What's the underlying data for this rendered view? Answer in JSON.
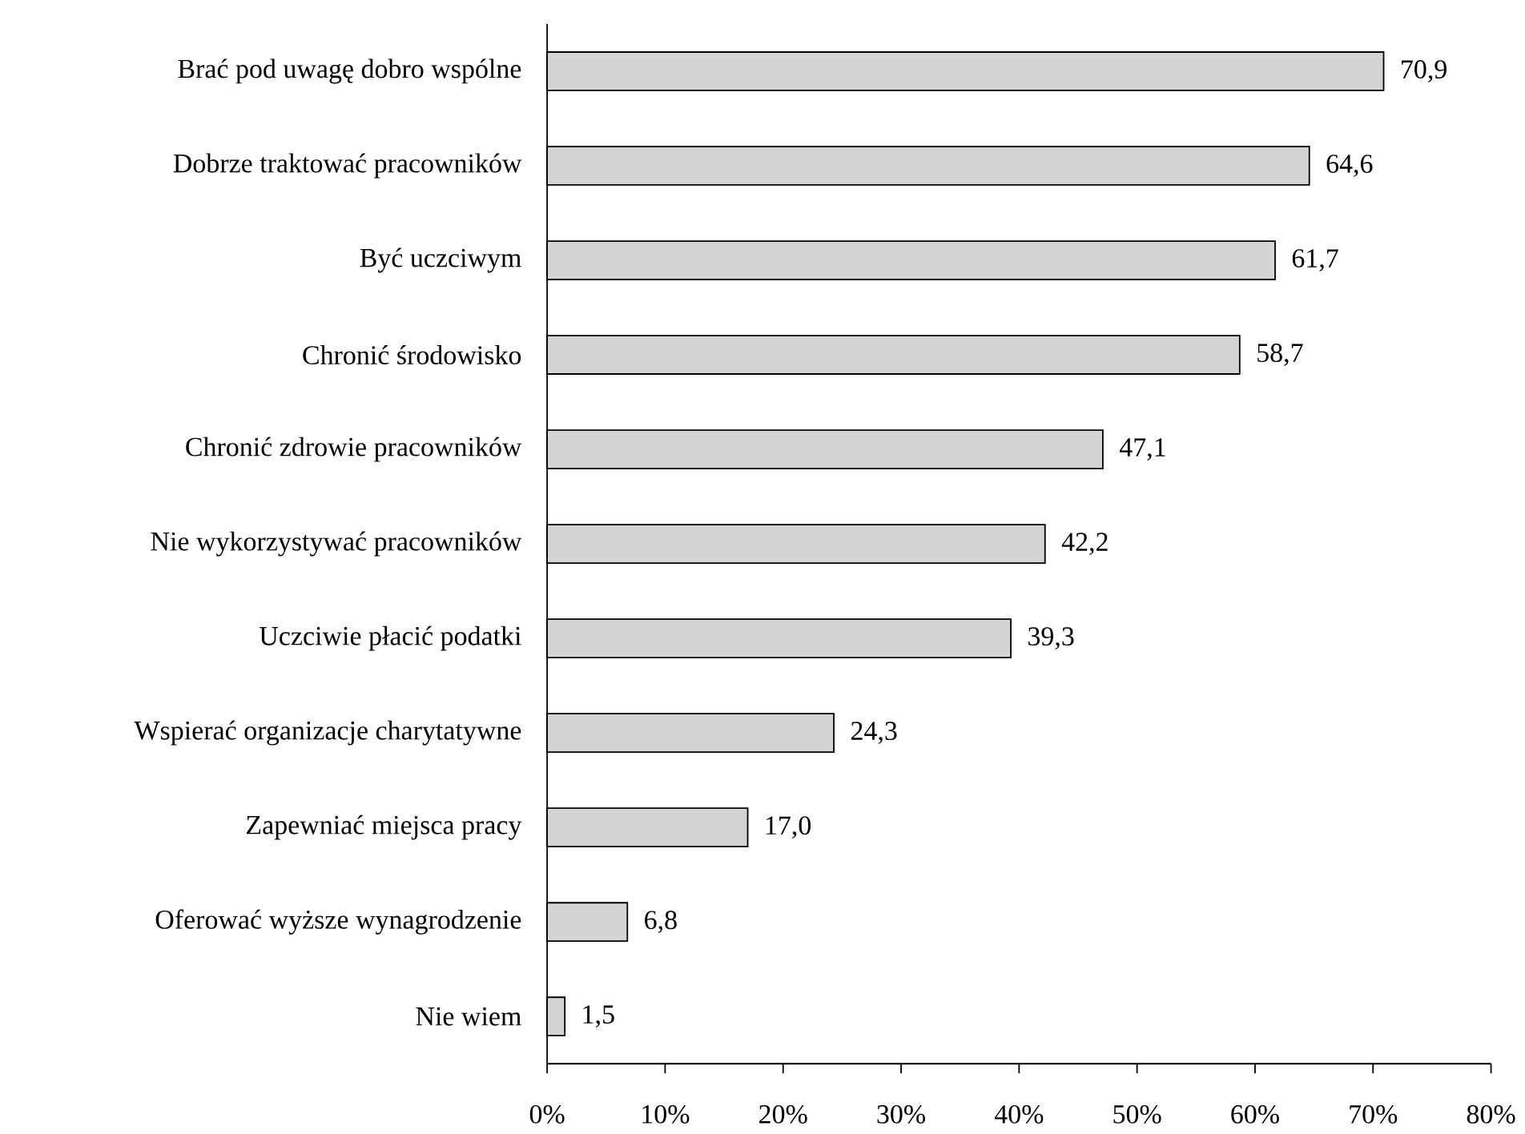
{
  "chart_data": {
    "type": "bar",
    "orientation": "horizontal",
    "categories": [
      "Brać pod uwagę dobro wspólne",
      "Dobrze traktować pracowników",
      "Być uczciwym",
      "Chronić środowisko",
      "Chronić zdrowie pracowników",
      "Nie wykorzystywać pracowników",
      "Uczciwie płacić podatki",
      "Wspierać organizacje charytatywne",
      "Zapewniać miejsca pracy",
      "Oferować wyższe wynagrodzenie",
      "Nie wiem"
    ],
    "values": [
      70.9,
      64.6,
      61.7,
      58.7,
      47.1,
      42.2,
      39.3,
      24.3,
      17.0,
      6.8,
      1.5
    ],
    "value_labels": [
      "70,9",
      "64,6",
      "61,7",
      "58,7",
      "47,1",
      "42,2",
      "39,3",
      "24,3",
      "17,0",
      "6,8",
      "1,5"
    ],
    "color": "#d4d4d6",
    "xlim": [
      0,
      80
    ],
    "xticks": [
      {
        "value": 0,
        "label": "0%"
      },
      {
        "value": 10,
        "label": "10%"
      },
      {
        "value": 20,
        "label": "20%"
      },
      {
        "value": 30,
        "label": "30%"
      },
      {
        "value": 40,
        "label": "40%"
      },
      {
        "value": 50,
        "label": "50%"
      },
      {
        "value": 60,
        "label": "60%"
      },
      {
        "value": 70,
        "label": "70%"
      },
      {
        "value": 80,
        "label": "80%"
      }
    ]
  }
}
